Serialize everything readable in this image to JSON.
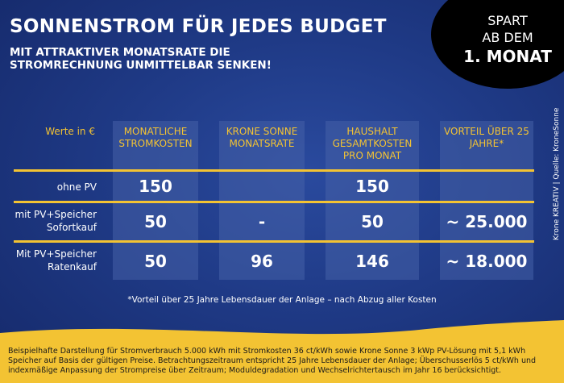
{
  "title": "SONNENSTROM FÜR JEDES BUDGET",
  "subtitle": "MIT ATTRAKTIVER MONATSRATE DIE STROMRECHNUNG UNMITTELBAR SENKEN!",
  "badge": {
    "line1": "SPART",
    "line2": "AB DEM",
    "line3": "1. MONAT"
  },
  "table": {
    "headers": [
      "Werte in €",
      "MONATLICHE STROMKOSTEN",
      "KRONE SONNE MONATSRATE",
      "HAUSHALT GESAMTKOSTEN PRO MONAT",
      "VORTEIL ÜBER 25 JAHRE*"
    ],
    "rows": [
      {
        "label": "ohne PV",
        "values": [
          "150",
          "",
          "150",
          ""
        ]
      },
      {
        "label": "mit PV+Speicher Sofortkauf",
        "values": [
          "50",
          "-",
          "50",
          "~ 25.000"
        ]
      },
      {
        "label": "Mit PV+Speicher Ratenkauf",
        "values": [
          "50",
          "96",
          "146",
          "~ 18.000"
        ]
      }
    ]
  },
  "footnote": "*Vorteil über 25 Jahre Lebensdauer der Anlage – nach Abzug aller Kosten",
  "credit": "Krone KREATIV | Quelle: KroneSonne",
  "bottom_note": "Beispielhafte Darstellung für Stromverbrauch 5.000 kWh mit Stromkosten 36 ct/kWh sowie Krone Sonne 3 kWp PV-Lösung mit 5,1 kWh Speicher auf Basis der gültigen Preise. Betrachtungszeitraum entspricht 25 Jahre Lebensdauer der Anlage; Überschusserlös 5 ct/kWh und indexmäßige Anpassung der Strompreise über Zeitraum; Moduldegradation und Wechselrichtertausch im Jahr 16 berücksichtigt.",
  "colors": {
    "background": "#1f3a86",
    "accent": "#f3c333",
    "badge": "#000000"
  }
}
